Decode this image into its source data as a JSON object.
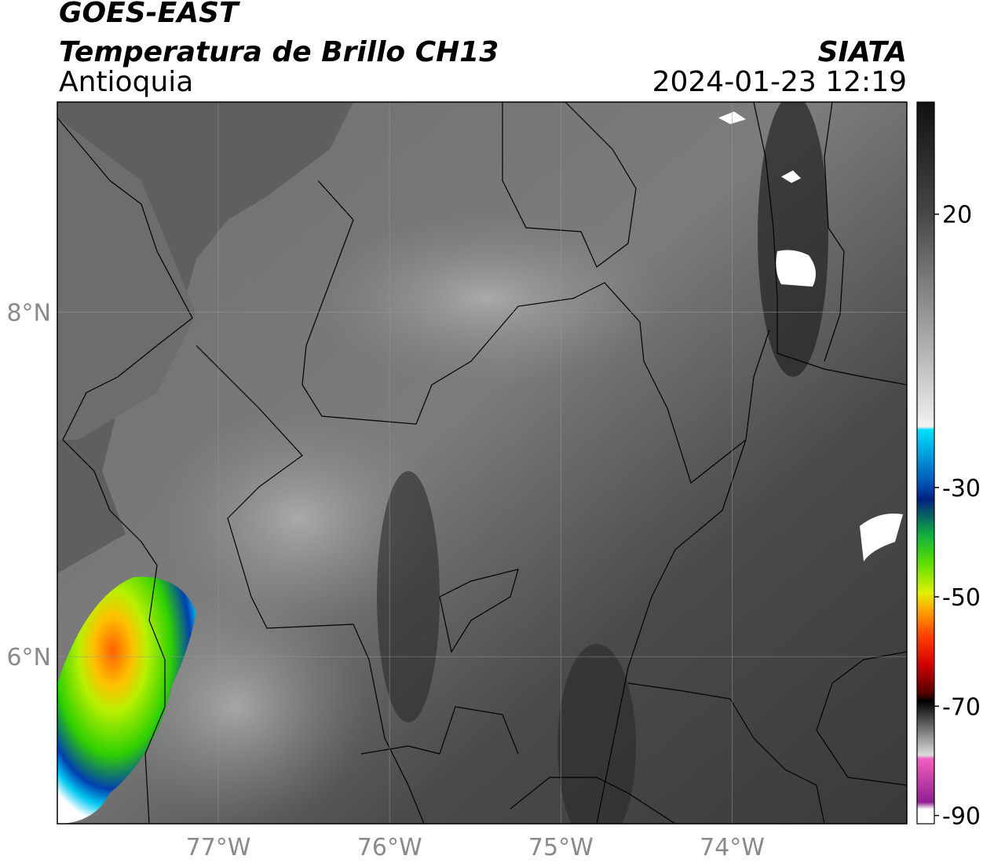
{
  "header": {
    "title": "GOES-EAST",
    "subtitle": "Temperatura de Brillo CH13",
    "region": "Antioquia",
    "source": "SIATA",
    "timestamp": "2024-01-23 12:19"
  },
  "map": {
    "xlim": [
      -77.94,
      -72.98
    ],
    "ylim": [
      5.03,
      9.22
    ],
    "xticks": [
      {
        "value": -77,
        "label": "77°W"
      },
      {
        "value": -76,
        "label": "76°W"
      },
      {
        "value": -75,
        "label": "75°W"
      },
      {
        "value": -74,
        "label": "74°W"
      }
    ],
    "yticks": [
      {
        "value": 6,
        "label": "6°N"
      },
      {
        "value": 8,
        "label": "8°N"
      }
    ]
  },
  "colorbar": {
    "lim": [
      -91.5,
      40.5
    ],
    "ticks": [
      20,
      -30,
      -50,
      -70,
      -90
    ]
  }
}
